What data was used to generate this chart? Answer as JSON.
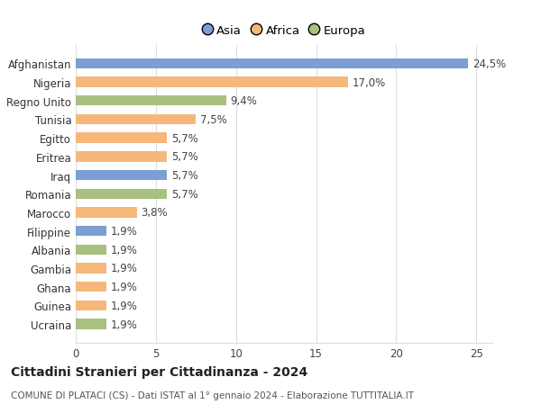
{
  "categories": [
    "Ucraina",
    "Guinea",
    "Ghana",
    "Gambia",
    "Albania",
    "Filippine",
    "Marocco",
    "Romania",
    "Iraq",
    "Eritrea",
    "Egitto",
    "Tunisia",
    "Regno Unito",
    "Nigeria",
    "Afghanistan"
  ],
  "values": [
    1.9,
    1.9,
    1.9,
    1.9,
    1.9,
    1.9,
    3.8,
    5.7,
    5.7,
    5.7,
    5.7,
    7.5,
    9.4,
    17.0,
    24.5
  ],
  "labels": [
    "1,9%",
    "1,9%",
    "1,9%",
    "1,9%",
    "1,9%",
    "1,9%",
    "3,8%",
    "5,7%",
    "5,7%",
    "5,7%",
    "5,7%",
    "7,5%",
    "9,4%",
    "17,0%",
    "24,5%"
  ],
  "colors": [
    "#a8c080",
    "#f5b87a",
    "#f5b87a",
    "#f5b87a",
    "#a8c080",
    "#7b9fd4",
    "#f5b87a",
    "#a8c080",
    "#7b9fd4",
    "#f5b87a",
    "#f5b87a",
    "#f5b87a",
    "#a8c080",
    "#f5b87a",
    "#7b9fd4"
  ],
  "legend_labels": [
    "Asia",
    "Africa",
    "Europa"
  ],
  "legend_colors": [
    "#7b9fd4",
    "#f5b87a",
    "#a8c080"
  ],
  "title": "Cittadini Stranieri per Cittadinanza - 2024",
  "subtitle": "COMUNE DI PLATACI (CS) - Dati ISTAT al 1° gennaio 2024 - Elaborazione TUTTITALIA.IT",
  "xlim": [
    0,
    26
  ],
  "xticks": [
    0,
    5,
    10,
    15,
    20,
    25
  ],
  "background_color": "#ffffff",
  "bar_height": 0.55,
  "label_fontsize": 8.5,
  "title_fontsize": 10,
  "subtitle_fontsize": 7.5,
  "ytick_fontsize": 8.5,
  "xtick_fontsize": 8.5,
  "grid_color": "#dddddd"
}
